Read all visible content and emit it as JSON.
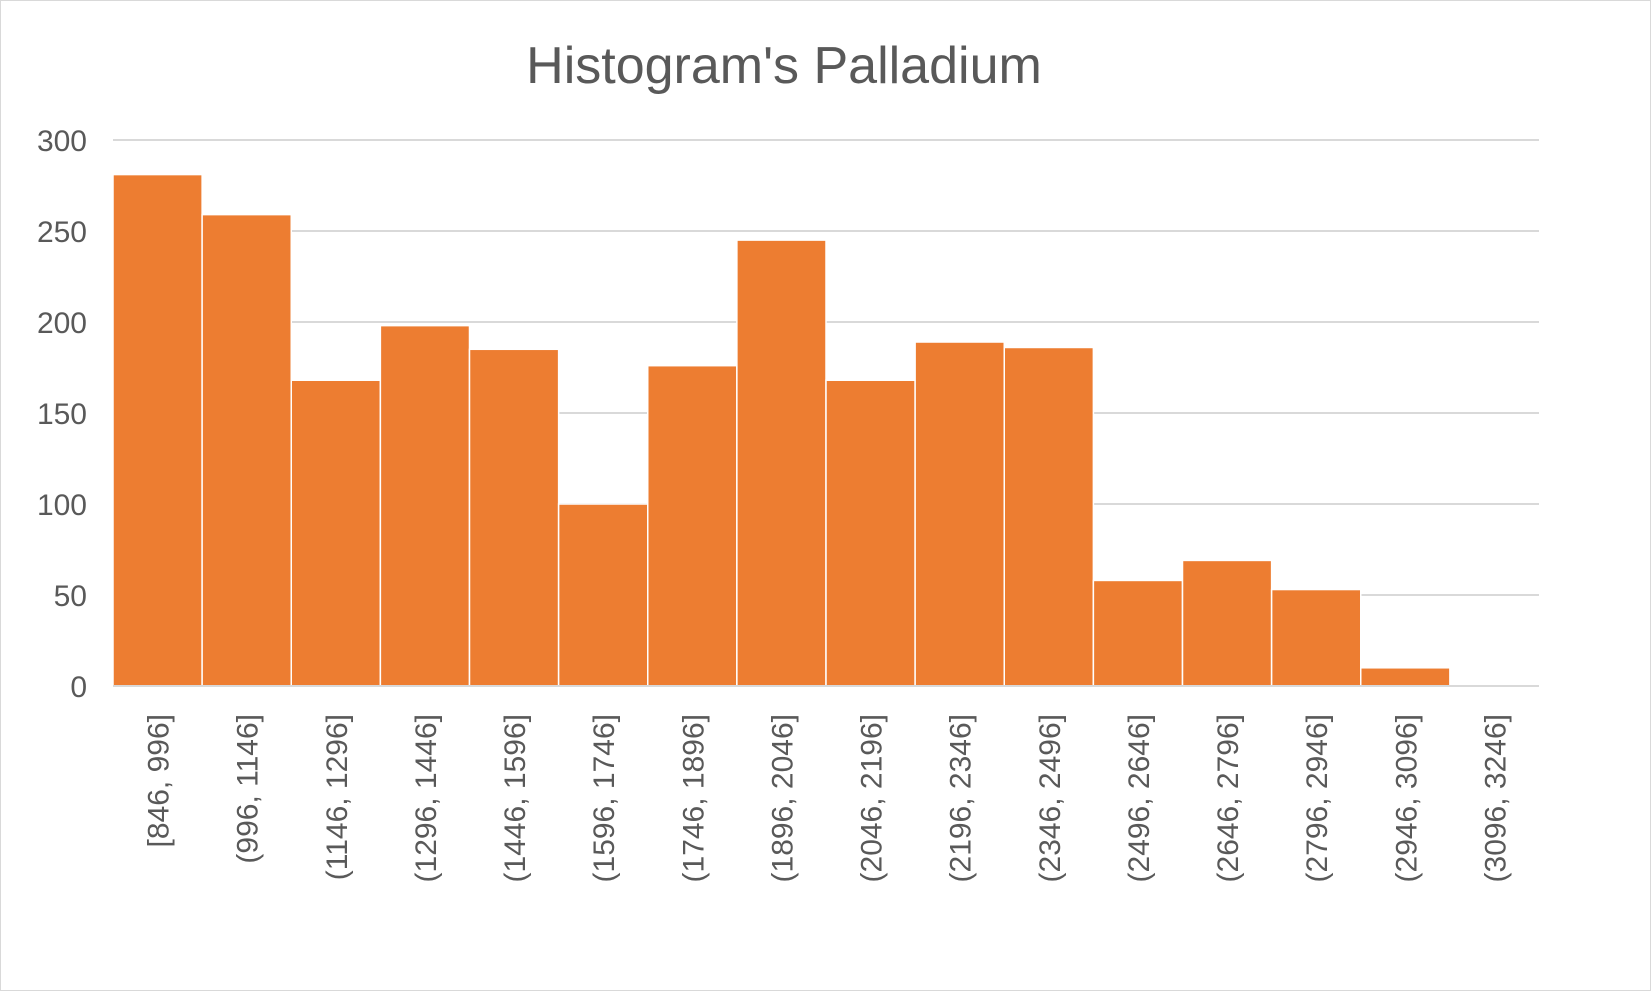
{
  "chart_data": {
    "type": "bar",
    "title": "Histogram's Palladium",
    "xlabel": "",
    "ylabel": "",
    "categories": [
      "[846, 996]",
      "(996, 1146]",
      "(1146, 1296]",
      "(1296, 1446]",
      "(1446, 1596]",
      "(1596, 1746]",
      "(1746, 1896]",
      "(1896, 2046]",
      "(2046, 2196]",
      "(2196, 2346]",
      "(2346, 2496]",
      "(2496, 2646]",
      "(2646, 2796]",
      "(2796, 2946]",
      "(2946, 3096]",
      "(3096, 3246]"
    ],
    "values": [
      281,
      259,
      168,
      198,
      185,
      100,
      176,
      245,
      168,
      189,
      186,
      58,
      69,
      53,
      10,
      0
    ],
    "ylim": [
      0,
      300
    ],
    "yticks": [
      0,
      50,
      100,
      150,
      200,
      250,
      300
    ],
    "grid": true,
    "legend": "none",
    "bar_color": "#ED7D31",
    "gap_width": 0
  }
}
